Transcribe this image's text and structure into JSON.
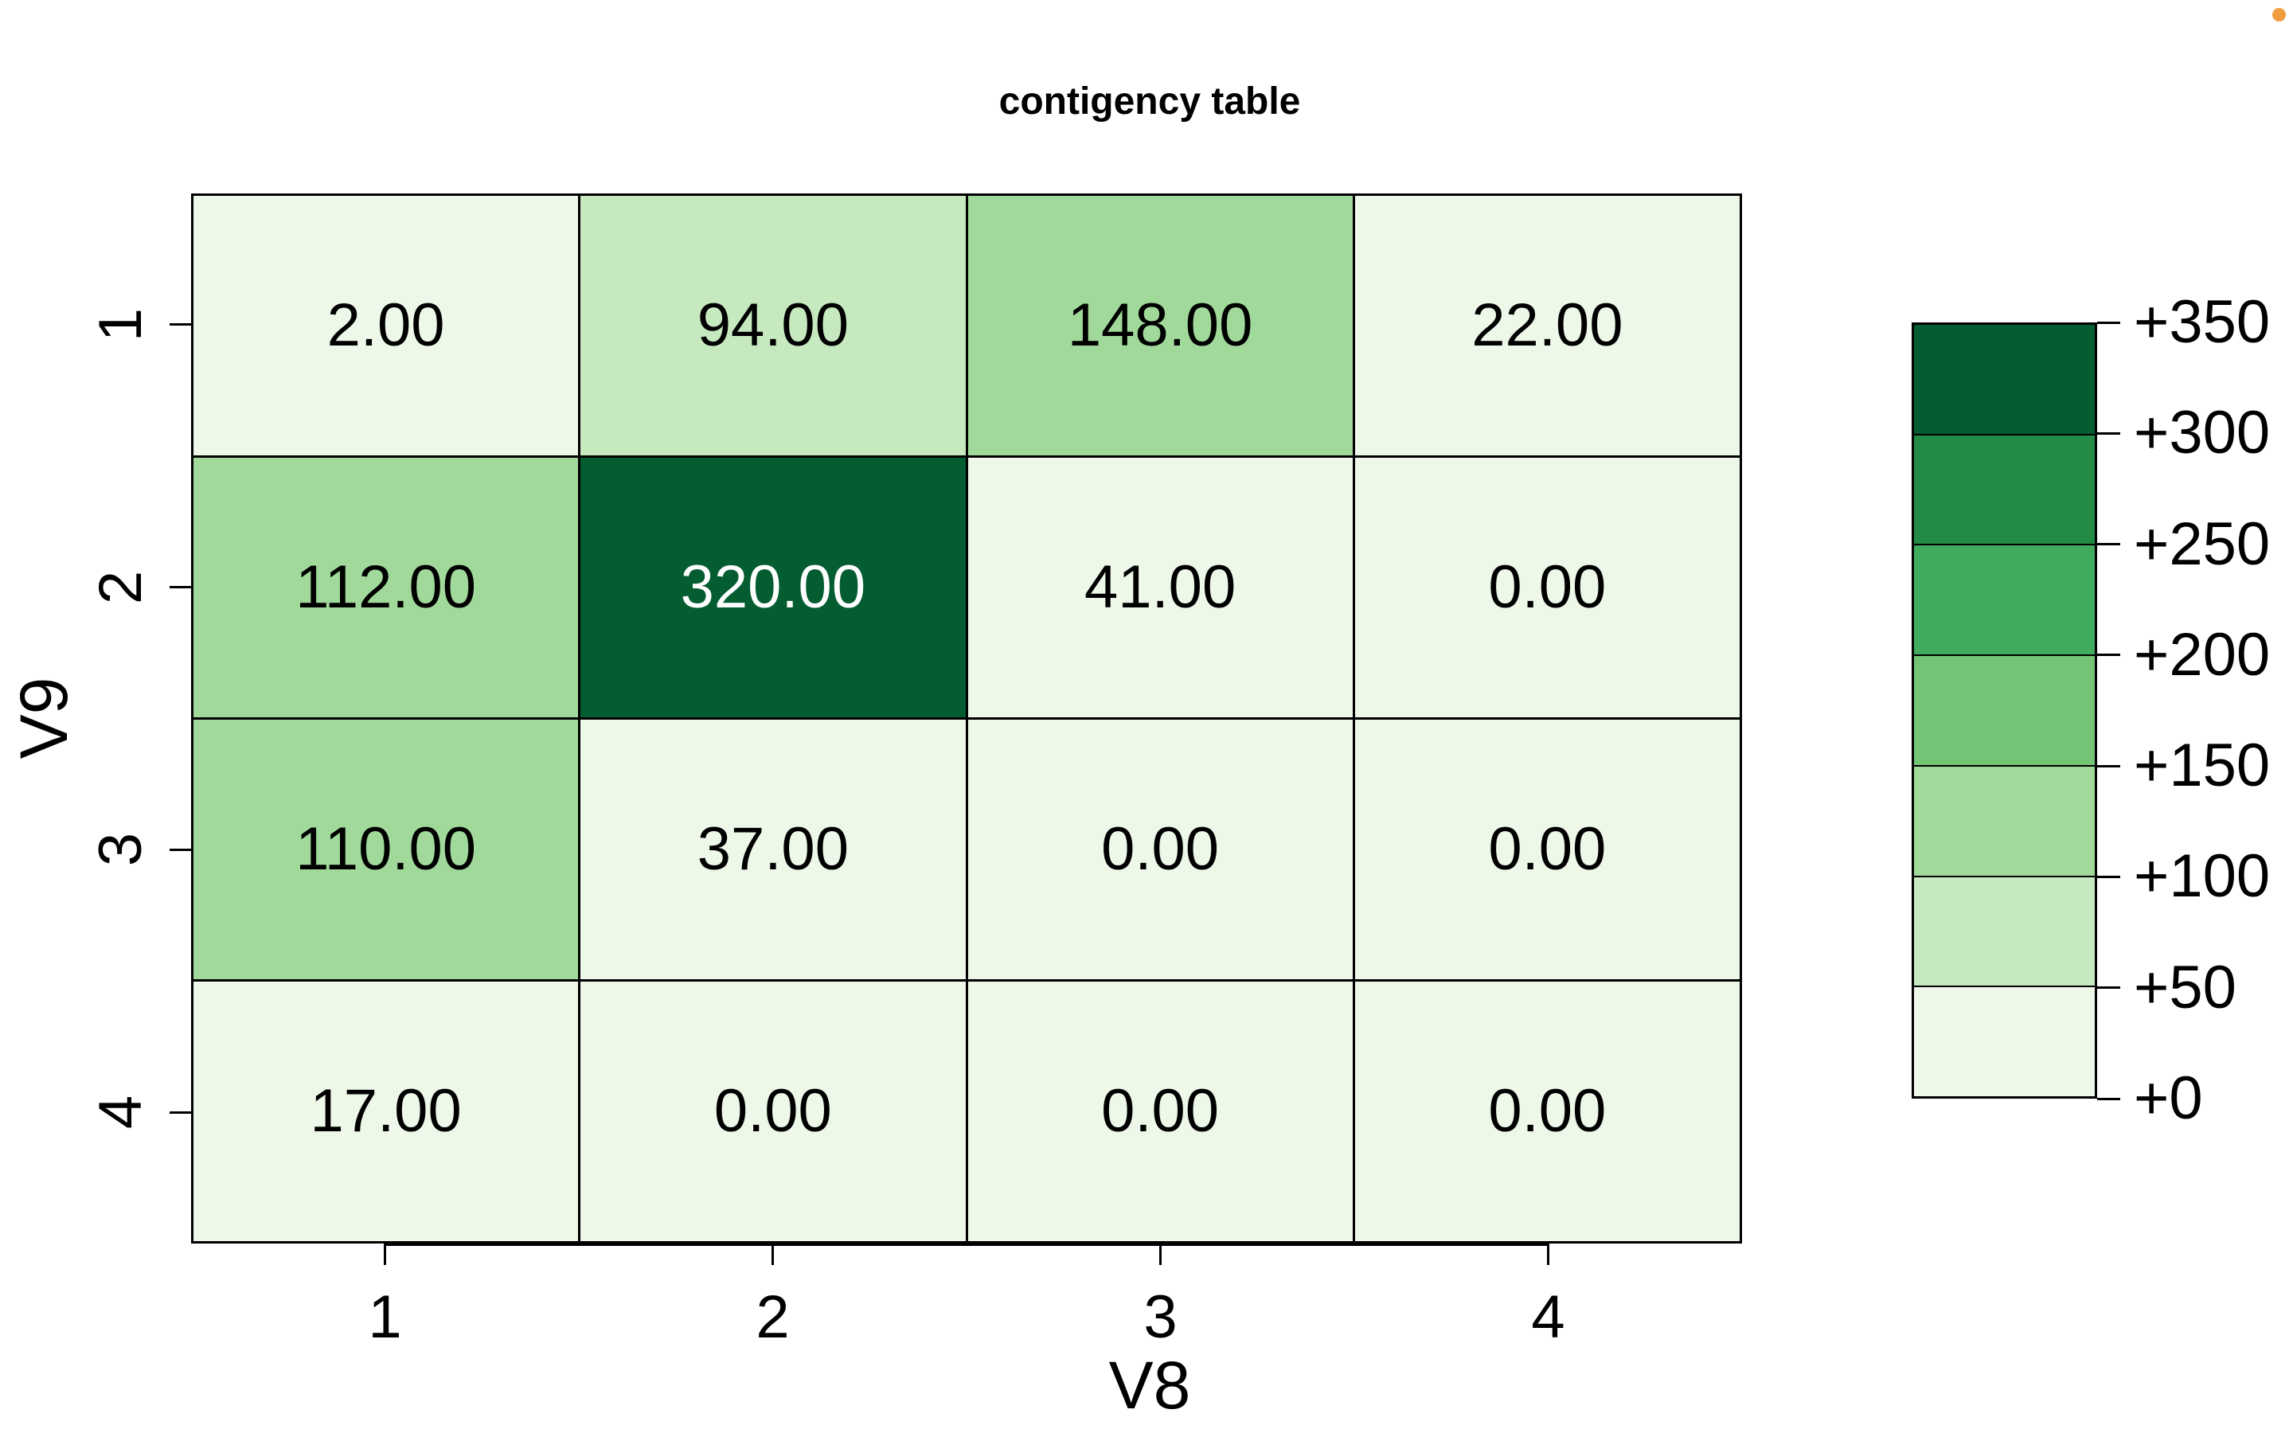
{
  "title": "contigency table",
  "x_axis": {
    "label": "V8",
    "ticks": [
      "1",
      "2",
      "3",
      "4"
    ]
  },
  "y_axis": {
    "label": "V9",
    "ticks": [
      "1",
      "2",
      "3",
      "4"
    ]
  },
  "heatmap": {
    "rows": [
      {
        "cells": [
          {
            "label": "2.00",
            "color": "#EDF8E9",
            "text_color": "#000000"
          },
          {
            "label": "94.00",
            "color": "#C7E9C0",
            "text_color": "#000000"
          },
          {
            "label": "148.00",
            "color": "#A1D99B",
            "text_color": "#000000"
          },
          {
            "label": "22.00",
            "color": "#EDF8E9",
            "text_color": "#000000"
          }
        ]
      },
      {
        "cells": [
          {
            "label": "112.00",
            "color": "#A1D99B",
            "text_color": "#000000"
          },
          {
            "label": "320.00",
            "color": "#045C31",
            "text_color": "#FFFFFF"
          },
          {
            "label": "41.00",
            "color": "#EDF8E9",
            "text_color": "#000000"
          },
          {
            "label": "0.00",
            "color": "#EDF8E9",
            "text_color": "#000000"
          }
        ]
      },
      {
        "cells": [
          {
            "label": "110.00",
            "color": "#A1D99B",
            "text_color": "#000000"
          },
          {
            "label": "37.00",
            "color": "#EDF8E9",
            "text_color": "#000000"
          },
          {
            "label": "0.00",
            "color": "#EDF8E9",
            "text_color": "#000000"
          },
          {
            "label": "0.00",
            "color": "#EDF8E9",
            "text_color": "#000000"
          }
        ]
      },
      {
        "cells": [
          {
            "label": "17.00",
            "color": "#EDF8E9",
            "text_color": "#000000"
          },
          {
            "label": "0.00",
            "color": "#EDF8E9",
            "text_color": "#000000"
          },
          {
            "label": "0.00",
            "color": "#EDF8E9",
            "text_color": "#000000"
          },
          {
            "label": "0.00",
            "color": "#EDF8E9",
            "text_color": "#000000"
          }
        ]
      }
    ]
  },
  "legend": {
    "labels_top_to_bottom": [
      "+350",
      "+300",
      "+250",
      "+200",
      "+150",
      "+100",
      "+50",
      "+0"
    ],
    "block_colors_top_to_bottom": [
      "#045C31",
      "#238B45",
      "#41AB5D",
      "#74C476",
      "#A1D99B",
      "#C7E9C0",
      "#EDF8E9"
    ]
  },
  "decorations": {
    "corner_dot_color": "#EF9D3E"
  },
  "chart_data": {
    "type": "heatmap",
    "title": "contigency table",
    "xlabel": "V8",
    "ylabel": "V9",
    "x": [
      1,
      2,
      3,
      4
    ],
    "y": [
      1,
      2,
      3,
      4
    ],
    "values_by_row": [
      [
        2,
        94,
        148,
        22
      ],
      [
        112,
        320,
        41,
        0
      ],
      [
        110,
        37,
        0,
        0
      ],
      [
        17,
        0,
        0,
        0
      ]
    ],
    "value_format": "2 decimal places, printed in each cell",
    "colorbar": {
      "range": [
        0,
        350
      ],
      "tick_step": 50,
      "tick_labels": [
        "+0",
        "+50",
        "+100",
        "+150",
        "+200",
        "+250",
        "+300",
        "+350"
      ],
      "bins": [
        {
          "range": [
            0,
            50
          ],
          "color": "#EDF8E9"
        },
        {
          "range": [
            50,
            100
          ],
          "color": "#C7E9C0"
        },
        {
          "range": [
            100,
            150
          ],
          "color": "#A1D99B"
        },
        {
          "range": [
            150,
            200
          ],
          "color": "#74C476"
        },
        {
          "range": [
            200,
            250
          ],
          "color": "#41AB5D"
        },
        {
          "range": [
            250,
            300
          ],
          "color": "#238B45"
        },
        {
          "range": [
            300,
            350
          ],
          "color": "#045C31"
        }
      ],
      "position": "right"
    },
    "grid": "black cell borders",
    "legend_position": "right"
  }
}
